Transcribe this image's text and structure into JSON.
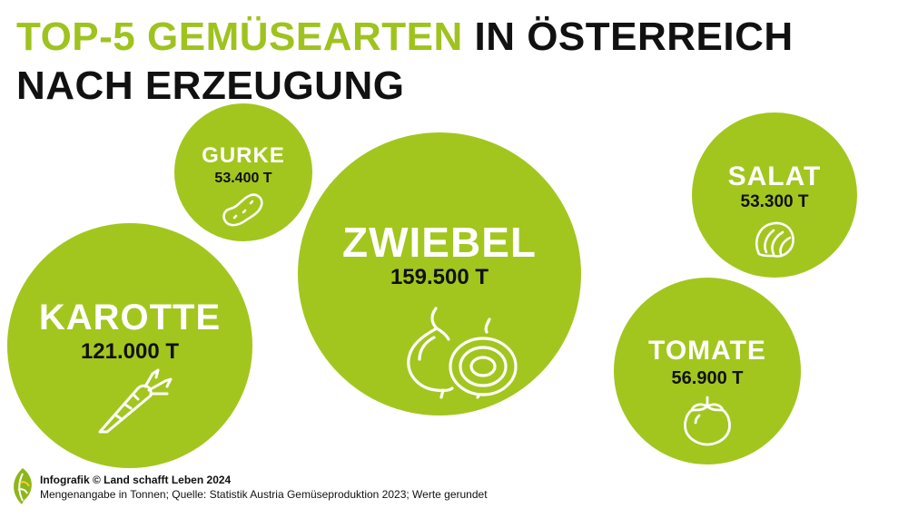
{
  "title": {
    "highlight": "TOP-5 GEMÜSEARTEN",
    "rest": " IN ÖSTERREICH NACH ERZEUGUNG"
  },
  "colors": {
    "accent": "#9fc31e",
    "bubble": "#a2c61e",
    "text": "#111111",
    "label": "#ffffff"
  },
  "chart_data": {
    "type": "bubble",
    "unit": "T",
    "items": [
      {
        "name": "ZWIEBEL",
        "value": 159500,
        "label": "159.500 T",
        "icon": "onion-icon"
      },
      {
        "name": "KAROTTE",
        "value": 121000,
        "label": "121.000 T",
        "icon": "carrot-icon"
      },
      {
        "name": "TOMATE",
        "value": 56900,
        "label": "56.900 T",
        "icon": "tomato-icon"
      },
      {
        "name": "GURKE",
        "value": 53400,
        "label": "53.400 T",
        "icon": "cucumber-icon"
      },
      {
        "name": "SALAT",
        "value": 53300,
        "label": "53.300 T",
        "icon": "lettuce-icon"
      }
    ]
  },
  "footer": {
    "credit": "Infografik © Land schafft Leben 2024",
    "note": "Mengenangabe in Tonnen; Quelle: Statistik Austria Gemüseproduktion 2023; Werte gerundet",
    "logo": "leaf-logo-icon"
  }
}
